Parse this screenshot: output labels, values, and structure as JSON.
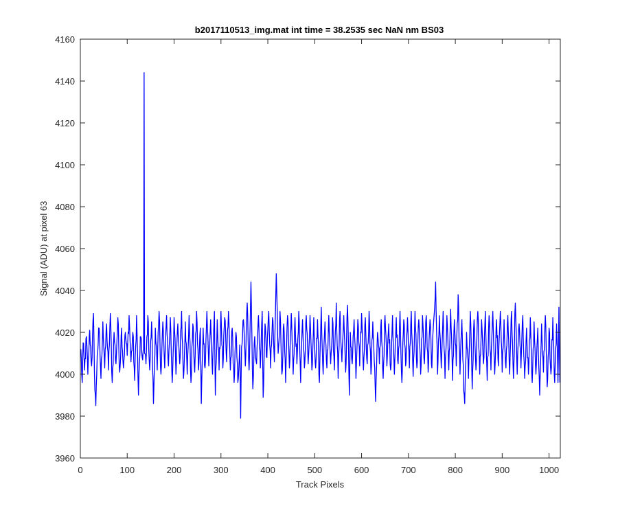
{
  "chart_data": {
    "type": "line",
    "title": "b2017110513_img.mat int time = 38.2535 sec   NaN nm BS03",
    "xlabel": "Track Pixels",
    "ylabel": "Signal (ADU) at pixel 63",
    "xlim": [
      0,
      1024
    ],
    "ylim": [
      3960,
      4160
    ],
    "xticks": [
      0,
      100,
      200,
      300,
      400,
      500,
      600,
      700,
      800,
      900,
      1000
    ],
    "yticks": [
      3960,
      3980,
      4000,
      4020,
      4040,
      4060,
      4080,
      4100,
      4120,
      4140,
      4160
    ],
    "grid": false,
    "series_color": "#0000ff",
    "axis_color": "#262626",
    "series": [
      {
        "x_start": 1,
        "x_step": 1,
        "baseline": 4010,
        "noise_amplitude": 10,
        "points": [
          [
            1,
            4012
          ],
          [
            4,
            3996
          ],
          [
            6,
            4015
          ],
          [
            9,
            4002
          ],
          [
            13,
            4018
          ],
          [
            16,
            4000
          ],
          [
            20,
            4021
          ],
          [
            24,
            4004
          ],
          [
            28,
            4029
          ],
          [
            30,
            4001
          ],
          [
            33,
            3985
          ],
          [
            36,
            4009
          ],
          [
            40,
            4022
          ],
          [
            44,
            3998
          ],
          [
            48,
            4025
          ],
          [
            52,
            4003
          ],
          [
            56,
            4024
          ],
          [
            60,
            4002
          ],
          [
            64,
            4029
          ],
          [
            68,
            3996
          ],
          [
            72,
            4020
          ],
          [
            76,
            4005
          ],
          [
            80,
            4027
          ],
          [
            84,
            4001
          ],
          [
            88,
            4022
          ],
          [
            92,
            4003
          ],
          [
            96,
            4020
          ],
          [
            100,
            4009
          ],
          [
            104,
            4028
          ],
          [
            108,
            4006
          ],
          [
            112,
            4020
          ],
          [
            116,
            3997
          ],
          [
            120,
            4028
          ],
          [
            124,
            3990
          ],
          [
            128,
            4018
          ],
          [
            132,
            4008
          ],
          [
            135,
            4012
          ],
          [
            136,
            4144
          ],
          [
            137,
            4010
          ],
          [
            140,
            4005
          ],
          [
            144,
            4028
          ],
          [
            148,
            4002
          ],
          [
            152,
            4025
          ],
          [
            156,
            3986
          ],
          [
            160,
            4022
          ],
          [
            164,
            4002
          ],
          [
            168,
            4030
          ],
          [
            172,
            4000
          ],
          [
            176,
            4025
          ],
          [
            180,
            4003
          ],
          [
            184,
            4028
          ],
          [
            188,
            4004
          ],
          [
            192,
            4027
          ],
          [
            196,
            3996
          ],
          [
            200,
            4027
          ],
          [
            204,
            4000
          ],
          [
            208,
            4024
          ],
          [
            212,
            4005
          ],
          [
            216,
            4030
          ],
          [
            220,
            3998
          ],
          [
            224,
            4025
          ],
          [
            228,
            4000
          ],
          [
            232,
            4028
          ],
          [
            236,
            3996
          ],
          [
            240,
            4024
          ],
          [
            244,
            4001
          ],
          [
            248,
            4030
          ],
          [
            252,
            4002
          ],
          [
            256,
            4022
          ],
          [
            258,
            3986
          ],
          [
            262,
            4022
          ],
          [
            266,
            4003
          ],
          [
            270,
            4030
          ],
          [
            274,
            4004
          ],
          [
            278,
            4026
          ],
          [
            282,
            4000
          ],
          [
            286,
            4030
          ],
          [
            288,
            3990
          ],
          [
            292,
            4026
          ],
          [
            296,
            4002
          ],
          [
            300,
            4030
          ],
          [
            304,
            4003
          ],
          [
            308,
            4027
          ],
          [
            312,
            4006
          ],
          [
            316,
            4030
          ],
          [
            320,
            4002
          ],
          [
            324,
            4022
          ],
          [
            328,
            3996
          ],
          [
            332,
            4020
          ],
          [
            336,
            3996
          ],
          [
            340,
            4014
          ],
          [
            342,
            3979
          ],
          [
            344,
            4013
          ],
          [
            348,
            4026
          ],
          [
            352,
            4004
          ],
          [
            356,
            4034
          ],
          [
            360,
            4002
          ],
          [
            364,
            4044
          ],
          [
            368,
            3993
          ],
          [
            372,
            4018
          ],
          [
            376,
            4005
          ],
          [
            380,
            4028
          ],
          [
            384,
            4003
          ],
          [
            388,
            4030
          ],
          [
            390,
            3989
          ],
          [
            394,
            4024
          ],
          [
            398,
            4008
          ],
          [
            402,
            4030
          ],
          [
            406,
            4003
          ],
          [
            410,
            4027
          ],
          [
            414,
            4006
          ],
          [
            418,
            4048
          ],
          [
            422,
            4010
          ],
          [
            426,
            4030
          ],
          [
            430,
            4000
          ],
          [
            434,
            4024
          ],
          [
            438,
            3996
          ],
          [
            442,
            4028
          ],
          [
            446,
            4003
          ],
          [
            450,
            4029
          ],
          [
            454,
            4000
          ],
          [
            458,
            4027
          ],
          [
            462,
            4005
          ],
          [
            466,
            4030
          ],
          [
            470,
            3996
          ],
          [
            474,
            4026
          ],
          [
            478,
            4003
          ],
          [
            482,
            4028
          ],
          [
            486,
            4005
          ],
          [
            490,
            4028
          ],
          [
            494,
            4002
          ],
          [
            498,
            4027
          ],
          [
            502,
            4003
          ],
          [
            506,
            4026
          ],
          [
            510,
            3996
          ],
          [
            514,
            4032
          ],
          [
            518,
            4000
          ],
          [
            522,
            4025
          ],
          [
            526,
            4003
          ],
          [
            530,
            4028
          ],
          [
            534,
            4005
          ],
          [
            538,
            4027
          ],
          [
            542,
            4002
          ],
          [
            546,
            4034
          ],
          [
            550,
            3998
          ],
          [
            554,
            4030
          ],
          [
            558,
            4006
          ],
          [
            562,
            4028
          ],
          [
            566,
            4001
          ],
          [
            570,
            4033
          ],
          [
            574,
            3990
          ],
          [
            576,
            4020
          ],
          [
            580,
            4005
          ],
          [
            584,
            4026
          ],
          [
            588,
            3998
          ],
          [
            592,
            4026
          ],
          [
            596,
            4004
          ],
          [
            600,
            4029
          ],
          [
            604,
            4002
          ],
          [
            608,
            4027
          ],
          [
            612,
            4005
          ],
          [
            616,
            4030
          ],
          [
            620,
            4000
          ],
          [
            624,
            4025
          ],
          [
            628,
            4003
          ],
          [
            630,
            3987
          ],
          [
            634,
            4020
          ],
          [
            638,
            4005
          ],
          [
            642,
            4026
          ],
          [
            646,
            3998
          ],
          [
            650,
            4028
          ],
          [
            654,
            4004
          ],
          [
            658,
            4024
          ],
          [
            662,
            4002
          ],
          [
            666,
            4028
          ],
          [
            670,
            4000
          ],
          [
            674,
            4027
          ],
          [
            678,
            4005
          ],
          [
            682,
            4030
          ],
          [
            686,
            3996
          ],
          [
            690,
            4026
          ],
          [
            694,
            4004
          ],
          [
            698,
            4027
          ],
          [
            702,
            4003
          ],
          [
            706,
            4030
          ],
          [
            710,
            3999
          ],
          [
            714,
            4030
          ],
          [
            718,
            4003
          ],
          [
            722,
            4026
          ],
          [
            726,
            4000
          ],
          [
            730,
            4028
          ],
          [
            734,
            4005
          ],
          [
            738,
            4028
          ],
          [
            742,
            4001
          ],
          [
            746,
            4026
          ],
          [
            750,
            4003
          ],
          [
            754,
            4026
          ],
          [
            758,
            4044
          ],
          [
            762,
            4000
          ],
          [
            766,
            4028
          ],
          [
            770,
            4003
          ],
          [
            774,
            4030
          ],
          [
            778,
            3998
          ],
          [
            782,
            4028
          ],
          [
            786,
            4002
          ],
          [
            790,
            4031
          ],
          [
            794,
            3997
          ],
          [
            798,
            4026
          ],
          [
            802,
            4004
          ],
          [
            806,
            4038
          ],
          [
            810,
            4000
          ],
          [
            814,
            4026
          ],
          [
            818,
            3992
          ],
          [
            820,
            3986
          ],
          [
            824,
            4020
          ],
          [
            828,
            3998
          ],
          [
            832,
            4030
          ],
          [
            836,
            3993
          ],
          [
            840,
            4026
          ],
          [
            844,
            4002
          ],
          [
            848,
            4030
          ],
          [
            852,
            4000
          ],
          [
            856,
            4026
          ],
          [
            860,
            4005
          ],
          [
            864,
            4030
          ],
          [
            868,
            3997
          ],
          [
            872,
            4028
          ],
          [
            876,
            4002
          ],
          [
            880,
            4030
          ],
          [
            884,
            4000
          ],
          [
            888,
            4026
          ],
          [
            892,
            4004
          ],
          [
            896,
            4030
          ],
          [
            900,
            4001
          ],
          [
            904,
            4026
          ],
          [
            908,
            4003
          ],
          [
            912,
            4028
          ],
          [
            916,
            4000
          ],
          [
            920,
            4030
          ],
          [
            924,
            3998
          ],
          [
            928,
            4034
          ],
          [
            932,
            4000
          ],
          [
            936,
            4024
          ],
          [
            940,
            4003
          ],
          [
            944,
            4028
          ],
          [
            948,
            3998
          ],
          [
            952,
            4022
          ],
          [
            956,
            4000
          ],
          [
            960,
            4027
          ],
          [
            964,
            3996
          ],
          [
            968,
            4025
          ],
          [
            972,
            4000
          ],
          [
            976,
            4022
          ],
          [
            980,
            3990
          ],
          [
            984,
            4024
          ],
          [
            988,
            4001
          ],
          [
            992,
            4028
          ],
          [
            996,
            3994
          ],
          [
            1000,
            4022
          ],
          [
            1004,
            4000
          ],
          [
            1008,
            4027
          ],
          [
            1012,
            3996
          ],
          [
            1016,
            4024
          ],
          [
            1019,
            3996
          ],
          [
            1021,
            4032
          ],
          [
            1023,
            3996
          ]
        ]
      }
    ]
  }
}
